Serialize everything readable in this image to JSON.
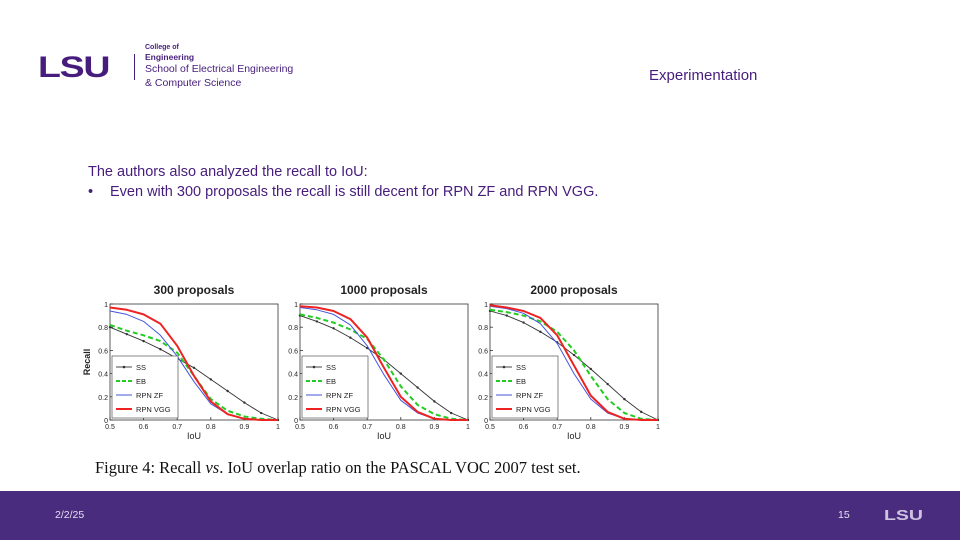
{
  "header": {
    "logo_mark": "LSU",
    "college_of": "College of",
    "college": "Engineering",
    "school_line1": "School of Electrical Engineering",
    "school_line2": "& Computer Science",
    "section_title": "Experimentation"
  },
  "content": {
    "intro": "The authors also analyzed the recall to IoU:",
    "bullet_mark": "•",
    "bullets": [
      "Even with 300 proposals the recall is still decent for RPN ZF and RPN VGG."
    ]
  },
  "figure": {
    "caption_prefix": "Figure 4: Recall ",
    "caption_vs": "vs",
    "caption_suffix": ". IoU overlap ratio on the PASCAL VOC 2007 test set."
  },
  "colors": {
    "brand": "#461d7c",
    "footer": "#4a2c7e",
    "SS": "#333333",
    "EB": "#22cc22",
    "RPN ZF": "#4455dd",
    "RPN VGG": "#ee2222"
  },
  "chart_data": [
    {
      "type": "line",
      "title": "300 proposals",
      "xlabel": "IoU",
      "ylabel": "Recall",
      "xlim": [
        0.5,
        1
      ],
      "ylim": [
        0,
        1
      ],
      "xticks": [
        "0.5",
        "0.6",
        "0.7",
        "0.8",
        "0.9",
        "1"
      ],
      "yticks": [
        "0",
        "0.2",
        "0.4",
        "0.6",
        "0.8",
        "1"
      ],
      "legend": "bottom-left",
      "x": [
        0.5,
        0.55,
        0.6,
        0.65,
        0.7,
        0.75,
        0.8,
        0.85,
        0.9,
        0.95,
        1.0
      ],
      "series": [
        {
          "name": "SS",
          "values": [
            0.8,
            0.74,
            0.68,
            0.61,
            0.53,
            0.45,
            0.35,
            0.25,
            0.15,
            0.06,
            0.0
          ]
        },
        {
          "name": "EB",
          "values": [
            0.82,
            0.77,
            0.73,
            0.68,
            0.58,
            0.38,
            0.18,
            0.08,
            0.03,
            0.01,
            0.0
          ]
        },
        {
          "name": "RPN ZF",
          "values": [
            0.94,
            0.91,
            0.85,
            0.73,
            0.55,
            0.33,
            0.14,
            0.05,
            0.01,
            0.0,
            0.0
          ]
        },
        {
          "name": "RPN VGG",
          "values": [
            0.97,
            0.95,
            0.91,
            0.83,
            0.64,
            0.38,
            0.16,
            0.05,
            0.01,
            0.0,
            0.0
          ]
        }
      ]
    },
    {
      "type": "line",
      "title": "1000 proposals",
      "xlabel": "IoU",
      "ylabel": "",
      "xlim": [
        0.5,
        1
      ],
      "ylim": [
        0,
        1
      ],
      "xticks": [
        "0.5",
        "0.6",
        "0.7",
        "0.8",
        "0.9",
        "1"
      ],
      "yticks": [
        "0",
        "0.2",
        "0.4",
        "0.6",
        "0.8",
        "1"
      ],
      "legend": "bottom-left",
      "x": [
        0.5,
        0.55,
        0.6,
        0.65,
        0.7,
        0.75,
        0.8,
        0.85,
        0.9,
        0.95,
        1.0
      ],
      "series": [
        {
          "name": "SS",
          "values": [
            0.9,
            0.85,
            0.79,
            0.71,
            0.62,
            0.52,
            0.4,
            0.28,
            0.16,
            0.06,
            0.0
          ]
        },
        {
          "name": "EB",
          "values": [
            0.91,
            0.88,
            0.84,
            0.78,
            0.7,
            0.52,
            0.29,
            0.13,
            0.05,
            0.01,
            0.0
          ]
        },
        {
          "name": "RPN ZF",
          "values": [
            0.97,
            0.95,
            0.91,
            0.82,
            0.64,
            0.39,
            0.17,
            0.06,
            0.01,
            0.0,
            0.0
          ]
        },
        {
          "name": "RPN VGG",
          "values": [
            0.98,
            0.97,
            0.94,
            0.87,
            0.71,
            0.45,
            0.2,
            0.07,
            0.01,
            0.0,
            0.0
          ]
        }
      ]
    },
    {
      "type": "line",
      "title": "2000 proposals",
      "xlabel": "IoU",
      "ylabel": "",
      "xlim": [
        0.5,
        1
      ],
      "ylim": [
        0,
        1
      ],
      "xticks": [
        "0.5",
        "0.6",
        "0.7",
        "0.8",
        "0.9",
        "1"
      ],
      "yticks": [
        "0",
        "0.2",
        "0.4",
        "0.6",
        "0.8",
        "1"
      ],
      "legend": "bottom-left",
      "x": [
        0.5,
        0.55,
        0.6,
        0.65,
        0.7,
        0.75,
        0.8,
        0.85,
        0.9,
        0.95,
        1.0
      ],
      "series": [
        {
          "name": "SS",
          "values": [
            0.94,
            0.9,
            0.84,
            0.76,
            0.67,
            0.56,
            0.44,
            0.31,
            0.18,
            0.07,
            0.0
          ]
        },
        {
          "name": "EB",
          "values": [
            0.95,
            0.93,
            0.9,
            0.85,
            0.76,
            0.6,
            0.38,
            0.18,
            0.06,
            0.01,
            0.0
          ]
        },
        {
          "name": "RPN ZF",
          "values": [
            0.98,
            0.96,
            0.92,
            0.83,
            0.66,
            0.4,
            0.18,
            0.06,
            0.01,
            0.0,
            0.0
          ]
        },
        {
          "name": "RPN VGG",
          "values": [
            0.99,
            0.97,
            0.94,
            0.88,
            0.73,
            0.47,
            0.21,
            0.07,
            0.01,
            0.0,
            0.0
          ]
        }
      ]
    }
  ],
  "footer": {
    "date": "2/2/25",
    "page_number": "15",
    "logo_mark": "LSU"
  }
}
